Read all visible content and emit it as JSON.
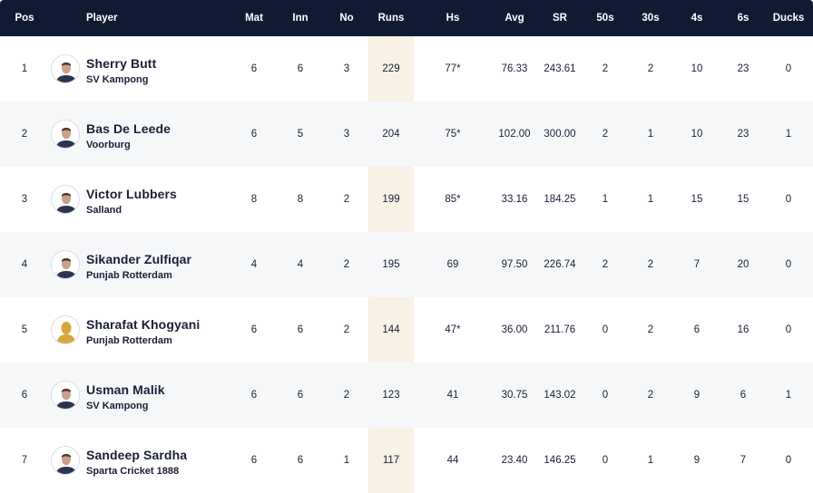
{
  "header": {
    "pos": "Pos",
    "player": "Player",
    "mat": "Mat",
    "inn": "Inn",
    "no": "No",
    "runs": "Runs",
    "hs": "Hs",
    "avg": "Avg",
    "sr": "SR",
    "fifties": "50s",
    "thirties": "30s",
    "fours": "4s",
    "sixes": "6s",
    "ducks": "Ducks"
  },
  "colors": {
    "header_bg": "#101a33",
    "runs_col_bg": "#f7f1e6",
    "alt_row_bg": "#f6f7f9"
  },
  "rows": [
    {
      "pos": "1",
      "name": "Sherry Butt",
      "team": "SV Kampong",
      "mat": "6",
      "inn": "6",
      "no": "3",
      "runs": "229",
      "hs": "77*",
      "avg": "76.33",
      "sr": "243.61",
      "fifties": "2",
      "thirties": "2",
      "fours": "10",
      "sixes": "23",
      "ducks": "0",
      "avatar": "player-photo"
    },
    {
      "pos": "2",
      "name": "Bas De Leede",
      "team": "Voorburg",
      "mat": "6",
      "inn": "5",
      "no": "3",
      "runs": "204",
      "hs": "75*",
      "avg": "102.00",
      "sr": "300.00",
      "fifties": "2",
      "thirties": "1",
      "fours": "10",
      "sixes": "23",
      "ducks": "1",
      "avatar": "player-photo"
    },
    {
      "pos": "3",
      "name": "Victor Lubbers",
      "team": "Salland",
      "mat": "8",
      "inn": "8",
      "no": "2",
      "runs": "199",
      "hs": "85*",
      "avg": "33.16",
      "sr": "184.25",
      "fifties": "1",
      "thirties": "1",
      "fours": "15",
      "sixes": "15",
      "ducks": "0",
      "avatar": "player-photo"
    },
    {
      "pos": "4",
      "name": "Sikander Zulfiqar",
      "team": "Punjab Rotterdam",
      "mat": "4",
      "inn": "4",
      "no": "2",
      "runs": "195",
      "hs": "69",
      "avg": "97.50",
      "sr": "226.74",
      "fifties": "2",
      "thirties": "2",
      "fours": "7",
      "sixes": "20",
      "ducks": "0",
      "avatar": "player-photo"
    },
    {
      "pos": "5",
      "name": "Sharafat Khogyani",
      "team": "Punjab Rotterdam",
      "mat": "6",
      "inn": "6",
      "no": "2",
      "runs": "144",
      "hs": "47*",
      "avg": "36.00",
      "sr": "211.76",
      "fifties": "0",
      "thirties": "2",
      "fours": "6",
      "sixes": "16",
      "ducks": "0",
      "avatar": "placeholder-silhouette"
    },
    {
      "pos": "6",
      "name": "Usman Malik",
      "team": "SV Kampong",
      "mat": "6",
      "inn": "6",
      "no": "2",
      "runs": "123",
      "hs": "41",
      "avg": "30.75",
      "sr": "143.02",
      "fifties": "0",
      "thirties": "2",
      "fours": "9",
      "sixes": "6",
      "ducks": "1",
      "avatar": "player-photo"
    },
    {
      "pos": "7",
      "name": "Sandeep Sardha",
      "team": "Sparta Cricket 1888",
      "mat": "6",
      "inn": "6",
      "no": "1",
      "runs": "117",
      "hs": "44",
      "avg": "23.40",
      "sr": "146.25",
      "fifties": "0",
      "thirties": "1",
      "fours": "9",
      "sixes": "7",
      "ducks": "0",
      "avatar": "player-photo"
    }
  ]
}
